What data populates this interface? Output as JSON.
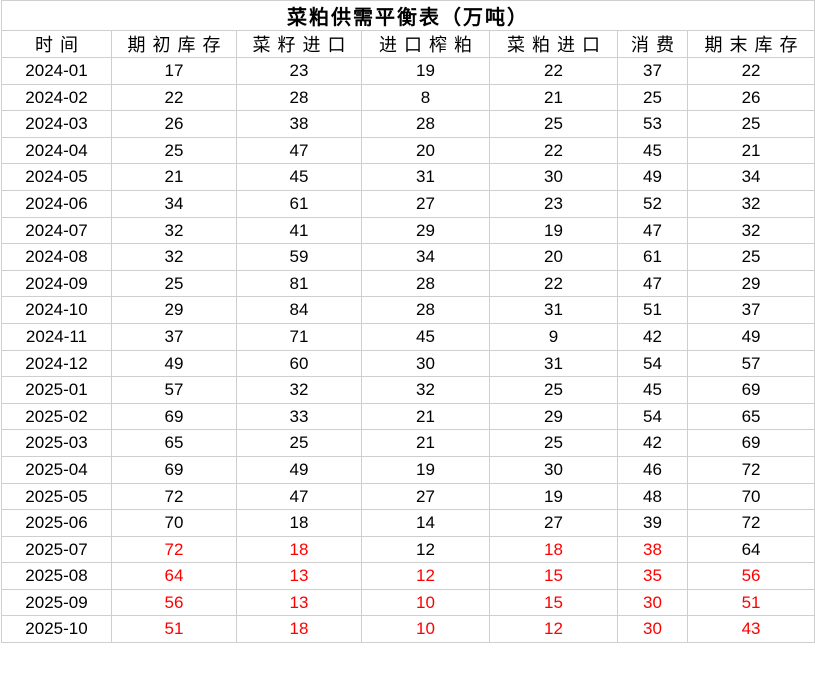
{
  "chart_data": {
    "type": "table",
    "title": "菜粕供需平衡表（万吨）",
    "columns": [
      "时间",
      "期初库存",
      "菜籽进口",
      "进口榨粕",
      "菜粕进口",
      "消费",
      "期末库存"
    ],
    "rows": [
      [
        "2024-01",
        17,
        23,
        19,
        22,
        37,
        22
      ],
      [
        "2024-02",
        22,
        28,
        8,
        21,
        25,
        26
      ],
      [
        "2024-03",
        26,
        38,
        28,
        25,
        53,
        25
      ],
      [
        "2024-04",
        25,
        47,
        20,
        22,
        45,
        21
      ],
      [
        "2024-05",
        21,
        45,
        31,
        30,
        49,
        34
      ],
      [
        "2024-06",
        34,
        61,
        27,
        23,
        52,
        32
      ],
      [
        "2024-07",
        32,
        41,
        29,
        19,
        47,
        32
      ],
      [
        "2024-08",
        32,
        59,
        34,
        20,
        61,
        25
      ],
      [
        "2024-09",
        25,
        81,
        28,
        22,
        47,
        29
      ],
      [
        "2024-10",
        29,
        84,
        28,
        31,
        51,
        37
      ],
      [
        "2024-11",
        37,
        71,
        45,
        9,
        42,
        49
      ],
      [
        "2024-12",
        49,
        60,
        30,
        31,
        54,
        57
      ],
      [
        "2025-01",
        57,
        32,
        32,
        25,
        45,
        69
      ],
      [
        "2025-02",
        69,
        33,
        21,
        29,
        54,
        65
      ],
      [
        "2025-03",
        65,
        25,
        21,
        25,
        42,
        69
      ],
      [
        "2025-04",
        69,
        49,
        19,
        30,
        46,
        72
      ],
      [
        "2025-05",
        72,
        47,
        27,
        19,
        48,
        70
      ],
      [
        "2025-06",
        70,
        18,
        14,
        27,
        39,
        72
      ],
      [
        "2025-07",
        72,
        18,
        12,
        18,
        38,
        64
      ],
      [
        "2025-08",
        64,
        13,
        12,
        15,
        35,
        56
      ],
      [
        "2025-09",
        56,
        13,
        10,
        15,
        30,
        51
      ],
      [
        "2025-10",
        51,
        18,
        10,
        12,
        30,
        43
      ]
    ],
    "red_cells": [
      {
        "row": "2025-07",
        "cols": [
          1,
          2,
          4,
          5
        ]
      },
      {
        "row": "2025-08",
        "cols": [
          1,
          2,
          3,
          4,
          5,
          6
        ]
      },
      {
        "row": "2025-09",
        "cols": [
          1,
          2,
          3,
          4,
          5,
          6
        ]
      },
      {
        "row": "2025-10",
        "cols": [
          1,
          2,
          3,
          4,
          5,
          6
        ]
      }
    ],
    "colors": {
      "highlight_red": "#FF0000",
      "grid": "#CFCFCF",
      "text": "#000000",
      "background": "#FFFFFF"
    },
    "layout": {
      "legend": "none",
      "grid": "on"
    }
  }
}
